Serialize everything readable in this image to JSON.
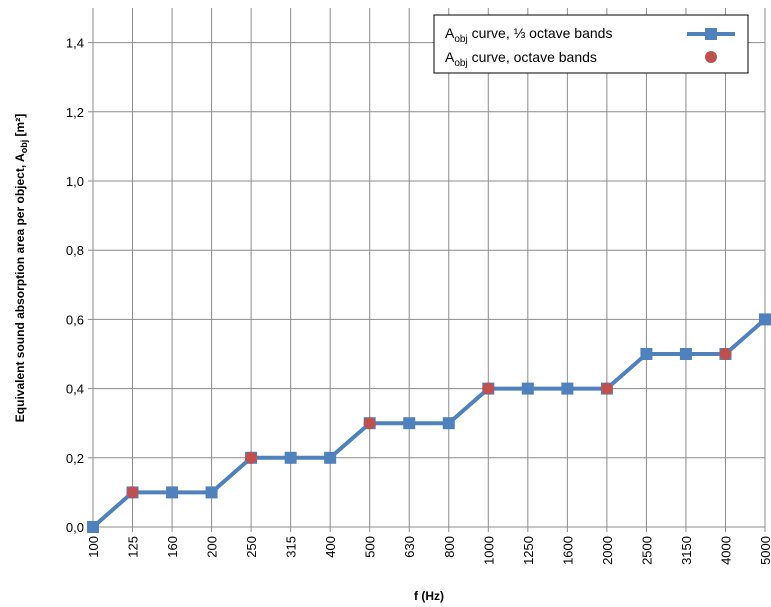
{
  "chart_data": {
    "type": "line",
    "categories": [
      "100",
      "125",
      "160",
      "200",
      "250",
      "315",
      "400",
      "500",
      "630",
      "800",
      "1000",
      "1250",
      "1600",
      "2000",
      "2500",
      "3150",
      "4000",
      "5000"
    ],
    "series": [
      {
        "name_main": "A",
        "name_sub": "obj",
        "name_rest": " curve, ⅓ octave bands",
        "color": "#4f81bd",
        "values": [
          0.0,
          0.1,
          0.1,
          0.1,
          0.2,
          0.2,
          0.2,
          0.3,
          0.3,
          0.3,
          0.4,
          0.4,
          0.4,
          0.4,
          0.5,
          0.5,
          0.5,
          0.6
        ]
      },
      {
        "name_main": "A",
        "name_sub": "obj",
        "name_rest": " curve, octave bands",
        "color": "#c0504d",
        "points": [
          {
            "x": "125",
            "y": 0.1
          },
          {
            "x": "250",
            "y": 0.2
          },
          {
            "x": "500",
            "y": 0.3
          },
          {
            "x": "1000",
            "y": 0.4
          },
          {
            "x": "2000",
            "y": 0.4
          },
          {
            "x": "4000",
            "y": 0.5
          }
        ]
      }
    ],
    "ylim": [
      0,
      1.5
    ],
    "yticks": [
      "0,0",
      "0,2",
      "0,4",
      "0,6",
      "0,8",
      "1,0",
      "1,2",
      "1,4"
    ],
    "ytick_values": [
      0,
      0.2,
      0.4,
      0.6,
      0.8,
      1.0,
      1.2,
      1.4
    ],
    "xlabel": "f (Hz)",
    "ylabel_main": "Equivalent sound absorption area per object, A",
    "ylabel_sub": "obj",
    "ylabel_rest": " [m²]",
    "grid": true,
    "legend_position": "top-right"
  }
}
